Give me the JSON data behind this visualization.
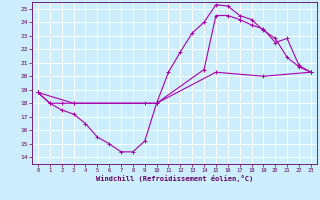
{
  "xlabel": "Windchill (Refroidissement éolien,°C)",
  "xlim": [
    -0.5,
    23.5
  ],
  "ylim": [
    13.5,
    25.5
  ],
  "yticks": [
    14,
    15,
    16,
    17,
    18,
    19,
    20,
    21,
    22,
    23,
    24,
    25
  ],
  "xticks": [
    0,
    1,
    2,
    3,
    4,
    5,
    6,
    7,
    8,
    9,
    10,
    11,
    12,
    13,
    14,
    15,
    16,
    17,
    18,
    19,
    20,
    21,
    22,
    23
  ],
  "bg_color": "#cceeff",
  "line_color": "#aa00aa",
  "grid_color": "#ffffff",
  "line1_x": [
    0,
    1,
    2,
    3,
    4,
    5,
    6,
    7,
    8,
    9,
    10,
    11,
    12,
    13,
    14,
    15,
    16,
    17,
    18,
    19,
    20,
    21,
    22,
    23
  ],
  "line1_y": [
    18.8,
    18.0,
    17.5,
    17.2,
    16.5,
    15.5,
    15.0,
    14.4,
    14.4,
    15.2,
    18.0,
    20.3,
    21.8,
    23.2,
    24.0,
    25.3,
    25.2,
    24.5,
    24.2,
    23.4,
    22.8,
    21.4,
    20.7,
    20.3
  ],
  "line2_x": [
    0,
    1,
    2,
    3,
    10,
    14,
    15,
    16,
    17,
    18,
    19,
    20,
    21,
    22,
    23
  ],
  "line2_y": [
    18.8,
    18.0,
    18.0,
    18.0,
    18.0,
    20.5,
    24.5,
    24.5,
    24.2,
    23.8,
    23.5,
    22.5,
    22.8,
    20.8,
    20.3
  ],
  "line3_x": [
    0,
    3,
    9,
    10,
    15,
    19,
    23
  ],
  "line3_y": [
    18.8,
    18.0,
    18.0,
    18.0,
    20.3,
    20.0,
    20.3
  ]
}
